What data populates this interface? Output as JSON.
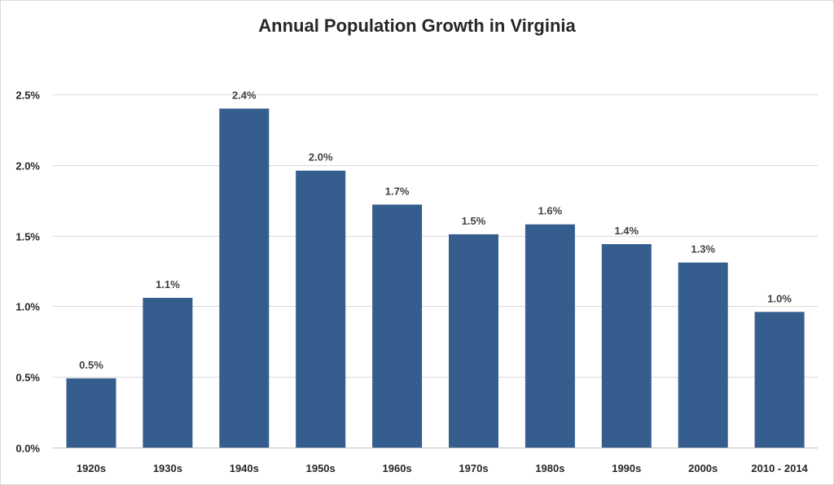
{
  "chart_data": {
    "type": "bar",
    "title": "Annual Population Growth in Virginia",
    "xlabel": "",
    "ylabel": "",
    "categories": [
      "1920s",
      "1930s",
      "1940s",
      "1950s",
      "1960s",
      "1970s",
      "1980s",
      "1990s",
      "2000s",
      "2010 - 2014"
    ],
    "values": [
      0.49,
      1.06,
      2.4,
      1.96,
      1.72,
      1.51,
      1.58,
      1.44,
      1.31,
      0.96
    ],
    "data_labels": [
      "0.5%",
      "1.1%",
      "2.4%",
      "2.0%",
      "1.7%",
      "1.5%",
      "1.6%",
      "1.4%",
      "1.3%",
      "1.0%"
    ],
    "ylim": [
      0,
      2.5
    ],
    "yticks": [
      0,
      0.5,
      1.0,
      1.5,
      2.0,
      2.5
    ],
    "ytick_labels": [
      "0.0%",
      "0.5%",
      "1.0%",
      "1.5%",
      "2.0%",
      "2.5%"
    ],
    "grid": true,
    "legend": "none",
    "bar_color": "#355e8f"
  }
}
